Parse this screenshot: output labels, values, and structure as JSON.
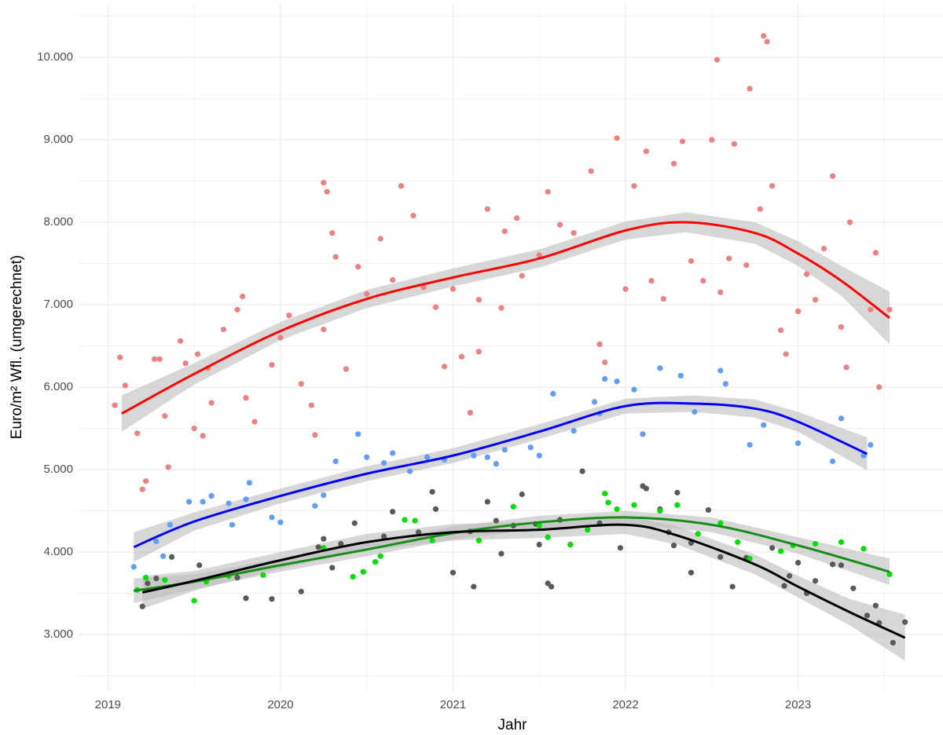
{
  "chart_data": {
    "type": "scatter",
    "x_label": "Jahr",
    "y_label": "Euro/m² Wfl. (umgerechnet)",
    "xlim": [
      2018.83,
      2023.84
    ],
    "ylim": [
      2314,
      10648
    ],
    "xticks": [
      2019,
      2020,
      2021,
      2022,
      2023
    ],
    "yticks": [
      {
        "value": 3000,
        "label": "3.000"
      },
      {
        "value": 4000,
        "label": "4.000"
      },
      {
        "value": 5000,
        "label": "5.000"
      },
      {
        "value": 6000,
        "label": "6.000"
      },
      {
        "value": 7000,
        "label": "7.000"
      },
      {
        "value": 8000,
        "label": "8.000"
      },
      {
        "value": 9000,
        "label": "9.000"
      },
      {
        "value": 10000,
        "label": "10.000"
      }
    ],
    "grid": true,
    "series": [
      {
        "color": "#f08080",
        "x": [
          2019.04,
          2019.07,
          2019.1,
          2019.17,
          2019.2,
          2019.22,
          2019.27,
          2019.3,
          2019.33,
          2019.35,
          2019.42,
          2019.45,
          2019.5,
          2019.52,
          2019.55,
          2019.58,
          2019.6,
          2019.67,
          2019.75,
          2019.78,
          2019.8,
          2019.85,
          2019.95,
          2020,
          2020.05,
          2020.12,
          2020.18,
          2020.2,
          2020.25,
          2020.25,
          2020.27,
          2020.3,
          2020.32,
          2020.38,
          2020.45,
          2020.5,
          2020.58,
          2020.65,
          2020.7,
          2020.77,
          2020.83,
          2020.9,
          2020.95,
          2021,
          2021.05,
          2021.1,
          2021.15,
          2021.15,
          2021.2,
          2021.28,
          2021.3,
          2021.37,
          2021.4,
          2021.5,
          2021.55,
          2021.62,
          2021.7,
          2021.8,
          2021.85,
          2021.88,
          2021.95,
          2022,
          2022.05,
          2022.12,
          2022.15,
          2022.22,
          2022.28,
          2022.33,
          2022.38,
          2022.45,
          2022.5,
          2022.53,
          2022.55,
          2022.6,
          2022.63,
          2022.7,
          2022.72,
          2022.78,
          2022.8,
          2022.82,
          2022.85,
          2022.9,
          2022.93,
          2023,
          2023.05,
          2023.1,
          2023.15,
          2023.2,
          2023.25,
          2023.28,
          2023.3,
          2023.42,
          2023.45,
          2023.47,
          2023.53
        ],
        "values": [
          5780,
          6360,
          6020,
          5440,
          4760,
          4860,
          6340,
          6340,
          5650,
          5030,
          6560,
          6290,
          5500,
          6400,
          5410,
          6230,
          5810,
          6700,
          6940,
          7100,
          5870,
          5580,
          6270,
          6600,
          6870,
          6040,
          5780,
          5420,
          6700,
          8480,
          8370,
          7870,
          7580,
          6220,
          7460,
          7130,
          7800,
          7300,
          8440,
          8080,
          7210,
          6970,
          6250,
          7190,
          6370,
          5690,
          6430,
          7060,
          8160,
          6960,
          7890,
          8050,
          7350,
          7600,
          8370,
          7970,
          7870,
          8620,
          6520,
          6300,
          9020,
          7190,
          8440,
          8860,
          7290,
          7070,
          8710,
          8980,
          7530,
          7290,
          9000,
          9970,
          7150,
          7560,
          8950,
          7480,
          9620,
          8160,
          10260,
          10190,
          8440,
          6690,
          6400,
          6920,
          7370,
          7060,
          7680,
          8560,
          6730,
          6240,
          8000,
          6940,
          7630,
          6000,
          6940
        ]
      },
      {
        "color": "#619cff",
        "x": [
          2019.15,
          2019.28,
          2019.32,
          2019.36,
          2019.47,
          2019.55,
          2019.6,
          2019.7,
          2019.72,
          2019.8,
          2019.82,
          2019.95,
          2020,
          2020.2,
          2020.25,
          2020.32,
          2020.45,
          2020.5,
          2020.6,
          2020.65,
          2020.75,
          2020.85,
          2020.95,
          2021.12,
          2021.2,
          2021.25,
          2021.3,
          2021.45,
          2021.5,
          2021.58,
          2021.7,
          2021.82,
          2021.85,
          2021.88,
          2021.95,
          2022.05,
          2022.1,
          2022.2,
          2022.32,
          2022.4,
          2022.55,
          2022.58,
          2022.72,
          2022.8,
          2023,
          2023.2,
          2023.25,
          2023.38,
          2023.42
        ],
        "values": [
          3820,
          4130,
          3950,
          4330,
          4610,
          4610,
          4680,
          4590,
          4330,
          4640,
          4840,
          4420,
          4360,
          4560,
          4690,
          5100,
          5430,
          5150,
          5080,
          5200,
          4980,
          5150,
          5120,
          5170,
          5150,
          5070,
          5240,
          5270,
          5170,
          5920,
          5470,
          5820,
          5680,
          6100,
          6070,
          5970,
          5430,
          6230,
          6140,
          5700,
          6200,
          6040,
          5300,
          5540,
          5320,
          5100,
          5620,
          5170,
          5300
        ]
      },
      {
        "color": "#595959",
        "x": [
          2019.2,
          2019.23,
          2019.28,
          2019.37,
          2019.53,
          2019.75,
          2019.8,
          2019.95,
          2020.12,
          2020.22,
          2020.25,
          2020.3,
          2020.35,
          2020.43,
          2020.6,
          2020.65,
          2020.8,
          2020.88,
          2020.9,
          2021,
          2021.1,
          2021.12,
          2021.2,
          2021.25,
          2021.28,
          2021.35,
          2021.4,
          2021.48,
          2021.5,
          2021.55,
          2021.57,
          2021.62,
          2021.75,
          2021.85,
          2021.97,
          2022.1,
          2022.12,
          2022.2,
          2022.25,
          2022.28,
          2022.3,
          2022.38,
          2022.38,
          2022.48,
          2022.55,
          2022.62,
          2022.7,
          2022.85,
          2022.92,
          2022.95,
          2023,
          2023.05,
          2023.1,
          2023.2,
          2023.25,
          2023.32,
          2023.4,
          2023.45,
          2023.47,
          2023.55,
          2023.62
        ],
        "values": [
          3340,
          3620,
          3680,
          3940,
          3840,
          3690,
          3440,
          3430,
          3520,
          4060,
          4160,
          3810,
          4100,
          4350,
          4190,
          4490,
          4240,
          4730,
          4520,
          3750,
          4250,
          3580,
          4610,
          4380,
          3980,
          4320,
          4700,
          4340,
          4090,
          3620,
          3580,
          4390,
          4980,
          4350,
          4050,
          4800,
          4770,
          4520,
          4240,
          4080,
          4720,
          4110,
          3750,
          4510,
          3940,
          3580,
          3930,
          4050,
          3590,
          3710,
          3870,
          3500,
          3650,
          3850,
          3840,
          3560,
          3230,
          3350,
          3140,
          2900,
          3150
        ]
      },
      {
        "color": "#00e000",
        "x": [
          2019.17,
          2019.22,
          2019.33,
          2019.5,
          2019.57,
          2019.7,
          2019.9,
          2020.25,
          2020.42,
          2020.48,
          2020.55,
          2020.58,
          2020.72,
          2020.78,
          2020.88,
          2021.15,
          2021.35,
          2021.5,
          2021.55,
          2021.68,
          2021.78,
          2021.88,
          2021.9,
          2021.95,
          2022.05,
          2022.2,
          2022.3,
          2022.42,
          2022.55,
          2022.65,
          2022.72,
          2022.9,
          2022.97,
          2023.1,
          2023.25,
          2023.38,
          2023.53
        ],
        "values": [
          3540,
          3690,
          3660,
          3410,
          3640,
          3710,
          3720,
          4050,
          3700,
          3760,
          3880,
          3950,
          4390,
          4380,
          4140,
          4140,
          4550,
          4320,
          4180,
          4090,
          4270,
          4710,
          4600,
          4520,
          4570,
          4500,
          4570,
          4220,
          4350,
          4120,
          3920,
          4010,
          4080,
          4100,
          4120,
          4040,
          3730
        ]
      }
    ],
    "smooth": [
      {
        "color": "#ff0000",
        "x": [
          2019.08,
          2019.5,
          2020,
          2020.5,
          2021,
          2021.5,
          2022,
          2022.35,
          2022.75,
          2023,
          2023.25,
          2023.53
        ],
        "values": [
          5680,
          6160,
          6680,
          7070,
          7330,
          7560,
          7900,
          8000,
          7870,
          7620,
          7290,
          6840
        ],
        "lower": [
          5460,
          6030,
          6570,
          6960,
          7220,
          7450,
          7790,
          7880,
          7740,
          7470,
          7110,
          6520
        ],
        "upper": [
          5900,
          6290,
          6790,
          7180,
          7440,
          7670,
          8010,
          8120,
          8000,
          7770,
          7470,
          7160
        ]
      },
      {
        "color": "#0000ff",
        "x": [
          2019.15,
          2019.5,
          2020,
          2020.5,
          2021,
          2021.5,
          2022,
          2022.4,
          2022.75,
          2023,
          2023.4
        ],
        "values": [
          4060,
          4370,
          4680,
          4950,
          5170,
          5460,
          5770,
          5800,
          5740,
          5580,
          5190
        ],
        "lower": [
          3880,
          4260,
          4590,
          4860,
          5080,
          5370,
          5680,
          5700,
          5630,
          5460,
          4990
        ],
        "upper": [
          4240,
          4480,
          4770,
          5040,
          5260,
          5550,
          5860,
          5900,
          5850,
          5700,
          5390
        ]
      },
      {
        "color": "#1a8c1a",
        "x": [
          2019.15,
          2019.5,
          2020,
          2020.5,
          2021,
          2021.5,
          2022,
          2022.5,
          2023,
          2023.53
        ],
        "values": [
          3530,
          3640,
          3840,
          4030,
          4230,
          4360,
          4420,
          4330,
          4080,
          3760
        ],
        "lower": [
          3380,
          3550,
          3760,
          3950,
          4150,
          4280,
          4340,
          4240,
          3980,
          3600
        ],
        "upper": [
          3680,
          3730,
          3920,
          4110,
          4310,
          4440,
          4500,
          4420,
          4180,
          3920
        ]
      },
      {
        "color": "#000000",
        "x": [
          2019.2,
          2019.5,
          2020,
          2020.5,
          2021,
          2021.5,
          2022,
          2022.3,
          2022.75,
          2023,
          2023.3,
          2023.62
        ],
        "values": [
          3510,
          3650,
          3900,
          4120,
          4240,
          4270,
          4330,
          4200,
          3850,
          3580,
          3270,
          2960
        ],
        "lower": [
          3310,
          3530,
          3800,
          4020,
          4140,
          4170,
          4220,
          4090,
          3730,
          3450,
          3110,
          2680
        ],
        "upper": [
          3710,
          3770,
          4000,
          4220,
          4340,
          4370,
          4440,
          4310,
          3970,
          3710,
          3430,
          3240
        ]
      }
    ]
  }
}
